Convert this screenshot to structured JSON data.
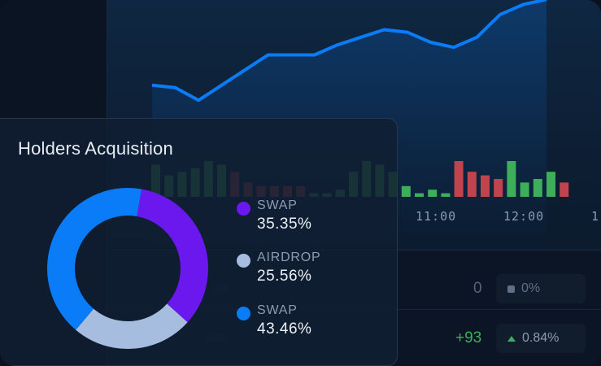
{
  "card": {
    "title": "Holders Acquisition",
    "legend": [
      {
        "name": "SWAP",
        "value": "35.35%",
        "color": "#6b18ef"
      },
      {
        "name": "AIRDROP",
        "value": "25.56%",
        "color": "#a7bde0"
      },
      {
        "name": "SWAP",
        "value": "43.46%",
        "color": "#0a7cf7"
      }
    ]
  },
  "chart_data": [
    {
      "type": "pie",
      "title": "Holders Acquisition",
      "categories": [
        "SWAP",
        "AIRDROP",
        "SWAP"
      ],
      "values": [
        35.35,
        25.56,
        43.46
      ],
      "colors": [
        "#6b18ef",
        "#a7bde0",
        "#0a7cf7"
      ]
    },
    {
      "type": "line",
      "title": "",
      "values": [
        63,
        62,
        57,
        63,
        69,
        75,
        75,
        75,
        79,
        82,
        85,
        84,
        80,
        78,
        82,
        91,
        95,
        97
      ],
      "ylim": [
        0,
        100
      ],
      "color": "#0a7cf7"
    },
    {
      "type": "bar",
      "title": "",
      "x_ticks": [
        "11:00",
        "12:00",
        "1"
      ],
      "values": [
        9,
        6,
        7,
        8,
        10,
        9,
        7,
        4,
        3,
        3,
        3,
        3,
        1,
        1,
        2,
        7,
        10,
        9,
        7,
        3,
        1,
        2,
        1,
        10,
        7,
        6,
        5,
        10,
        4,
        5,
        7,
        4
      ],
      "directions": [
        "up",
        "up",
        "up",
        "up",
        "up",
        "up",
        "down",
        "down",
        "down",
        "down",
        "down",
        "down",
        "up",
        "up",
        "up",
        "up",
        "up",
        "up",
        "up",
        "up",
        "up",
        "up",
        "up",
        "down",
        "down",
        "down",
        "down",
        "up",
        "up",
        "up",
        "up",
        "down"
      ],
      "colors": {
        "up": "#3fae5a",
        "down": "#c0444d"
      }
    }
  ],
  "axis": {
    "t1": "11:00",
    "t2": "12:00",
    "t3": "1"
  },
  "table": {
    "row1": {
      "value": "0",
      "change": "0%"
    },
    "row2": {
      "value": "+93",
      "change": "0.84%"
    }
  }
}
